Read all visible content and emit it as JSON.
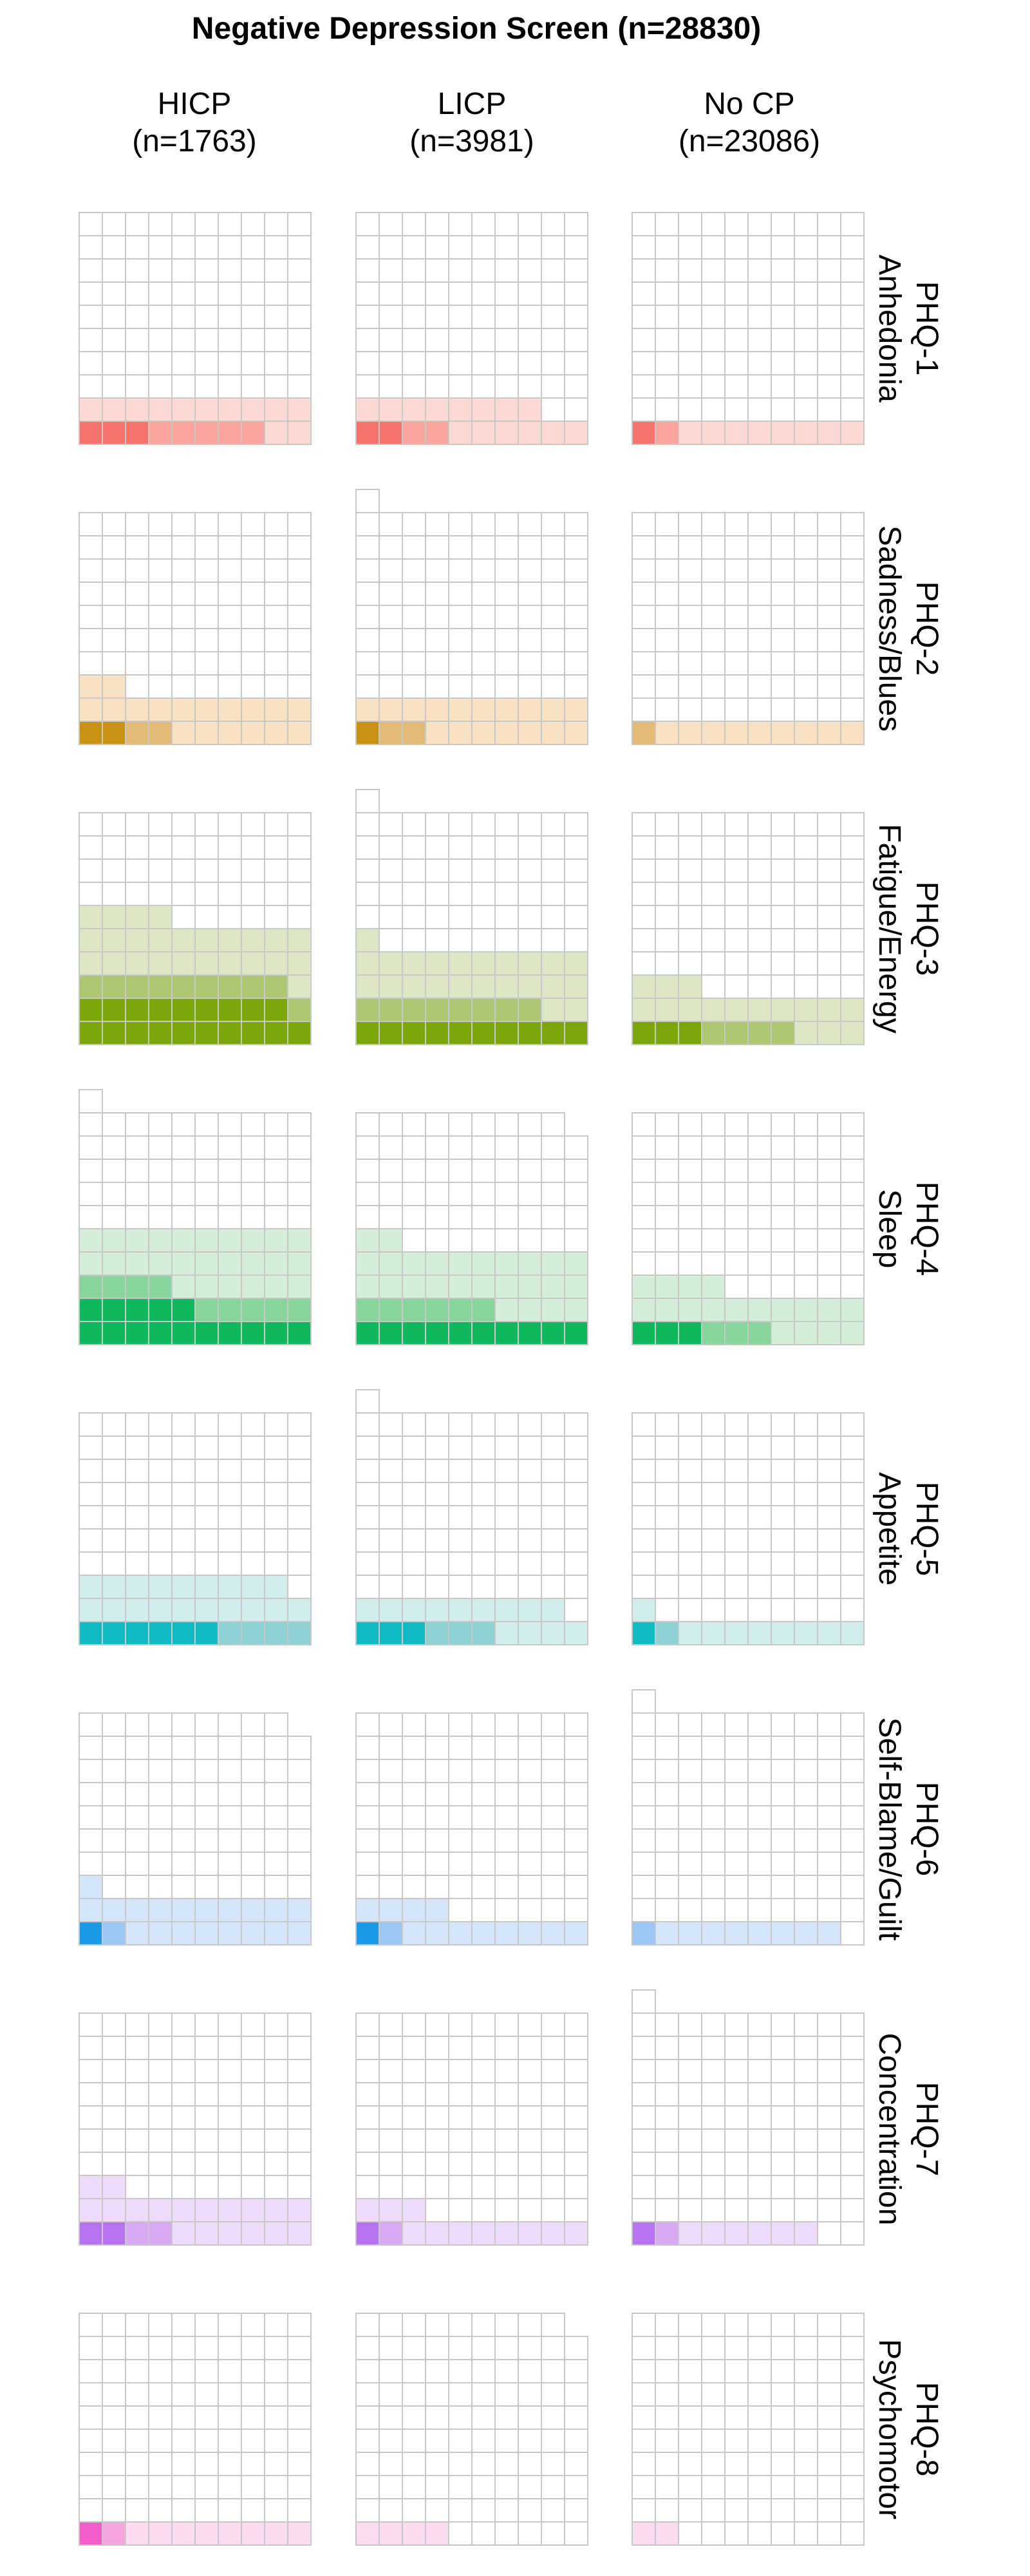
{
  "chart_data": {
    "type": "waffle",
    "title": "Negative Depression Screen (n=28830)",
    "grid": {
      "rows": 10,
      "cols": 10
    },
    "columns": [
      {
        "label": "HICP",
        "n_label": "(n=1763)"
      },
      {
        "label": "LICP",
        "n_label": "(n=3981)"
      },
      {
        "label": "No CP",
        "n_label": "(n=23086)"
      }
    ],
    "rows": [
      {
        "code": "PHQ-1",
        "name": "Anhedonia",
        "colors": [
          "#f4736d",
          "#f9a59e",
          "#fdd9d3"
        ],
        "panels": [
          {
            "total": 100,
            "counts": [
              3,
              5,
              12
            ]
          },
          {
            "total": 100,
            "counts": [
              2,
              2,
              14
            ]
          },
          {
            "total": 100,
            "counts": [
              1,
              1,
              8
            ]
          }
        ]
      },
      {
        "code": "PHQ-2",
        "name": "Sadness/Blues",
        "colors": [
          "#c99113",
          "#e2bb76",
          "#f8e2c3"
        ],
        "panels": [
          {
            "total": 100,
            "counts": [
              2,
              2,
              18
            ]
          },
          {
            "total": 101,
            "counts": [
              1,
              2,
              17
            ]
          },
          {
            "total": 100,
            "counts": [
              0,
              1,
              9
            ]
          }
        ]
      },
      {
        "code": "PHQ-3",
        "name": "Fatigue/Energy",
        "colors": [
          "#7aa50b",
          "#adc772",
          "#dde7c5"
        ],
        "panels": [
          {
            "total": 100,
            "counts": [
              19,
              10,
              25
            ]
          },
          {
            "total": 101,
            "counts": [
              10,
              8,
              23
            ]
          },
          {
            "total": 100,
            "counts": [
              3,
              4,
              16
            ]
          }
        ]
      },
      {
        "code": "PHQ-4",
        "name": "Sleep",
        "colors": [
          "#0fb85d",
          "#88d59b",
          "#d4eed9"
        ],
        "panels": [
          {
            "total": 101,
            "counts": [
              15,
              9,
              26
            ]
          },
          {
            "total": 99,
            "counts": [
              10,
              6,
              26
            ]
          },
          {
            "total": 100,
            "counts": [
              3,
              3,
              18
            ]
          }
        ]
      },
      {
        "code": "PHQ-5",
        "name": "Appetite",
        "colors": [
          "#12bac4",
          "#8fd2d4",
          "#d2eeec"
        ],
        "panels": [
          {
            "total": 100,
            "counts": [
              6,
              4,
              19
            ]
          },
          {
            "total": 101,
            "counts": [
              3,
              3,
              13
            ]
          },
          {
            "total": 100,
            "counts": [
              1,
              1,
              9
            ]
          }
        ]
      },
      {
        "code": "PHQ-6",
        "name": "Self-Blame/Guilt",
        "colors": [
          "#1a9ae6",
          "#9cc6f3",
          "#d5e6fa"
        ],
        "panels": [
          {
            "total": 99,
            "counts": [
              1,
              1,
              19
            ]
          },
          {
            "total": 100,
            "counts": [
              1,
              1,
              12
            ]
          },
          {
            "total": 101,
            "counts": [
              0,
              1,
              8
            ]
          }
        ]
      },
      {
        "code": "PHQ-7",
        "name": "Concentration",
        "colors": [
          "#b772ef",
          "#d8aaf4",
          "#efdcfb"
        ],
        "panels": [
          {
            "total": 100,
            "counts": [
              2,
              2,
              18
            ]
          },
          {
            "total": 100,
            "counts": [
              1,
              1,
              11
            ]
          },
          {
            "total": 101,
            "counts": [
              1,
              1,
              6
            ]
          }
        ]
      },
      {
        "code": "PHQ-8",
        "name": "Psychomotor",
        "colors": [
          "#f25ccb",
          "#f7a5de",
          "#fcdcf1"
        ],
        "panels": [
          {
            "total": 100,
            "counts": [
              1,
              1,
              8
            ]
          },
          {
            "total": 99,
            "counts": [
              0,
              0,
              4
            ]
          },
          {
            "total": 100,
            "counts": [
              0,
              0,
              2
            ]
          }
        ]
      }
    ],
    "empty_color": "#ffffff",
    "grid_line_color": "#c8c8c8"
  }
}
